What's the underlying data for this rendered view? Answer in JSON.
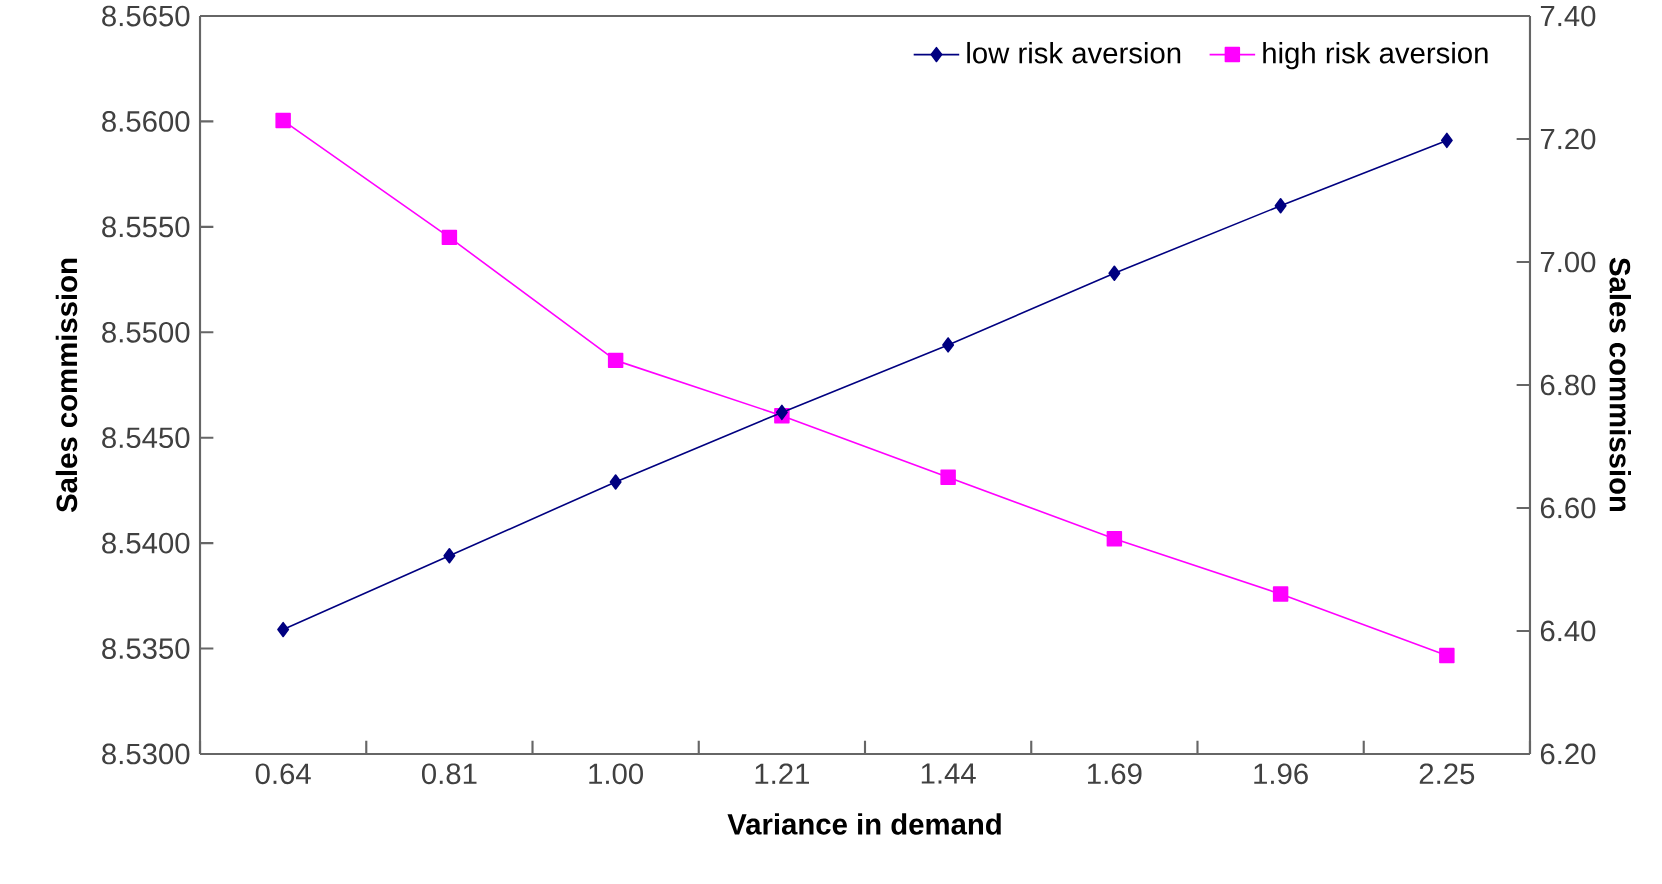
{
  "chart_data": {
    "type": "line",
    "xlabel": "Variance in demand",
    "ylabel": "Sales commission",
    "y2label": "Sales commission",
    "categories": [
      "0.64",
      "0.81",
      "1.00",
      "1.21",
      "1.44",
      "1.69",
      "1.96",
      "2.25"
    ],
    "series": [
      {
        "name": "low risk aversion",
        "color": "#000080",
        "marker": "diamond",
        "values": [
          8.5359,
          8.5394,
          8.5429,
          8.5462,
          8.5494,
          8.5528,
          8.556,
          8.5591
        ]
      },
      {
        "name": "high risk aversion",
        "color": "#ff00ff",
        "marker": "square",
        "axis": "y2",
        "values": [
          7.23,
          7.04,
          6.84,
          6.75,
          6.65,
          6.55,
          6.46,
          6.36
        ]
      }
    ],
    "ylim": [
      8.53,
      8.565
    ],
    "yticks": [
      {
        "value": 8.53,
        "label": "8.5300"
      },
      {
        "value": 8.535,
        "label": "8.5350"
      },
      {
        "value": 8.54,
        "label": "8.5400"
      },
      {
        "value": 8.545,
        "label": "8.5450"
      },
      {
        "value": 8.55,
        "label": "8.5500"
      },
      {
        "value": 8.555,
        "label": "8.5550"
      },
      {
        "value": 8.56,
        "label": "8.5600"
      },
      {
        "value": 8.565,
        "label": "8.5650"
      }
    ],
    "y2lim": [
      6.2,
      7.4
    ],
    "y2ticks": [
      {
        "value": 6.2,
        "label": "6.20"
      },
      {
        "value": 6.4,
        "label": "6.40"
      },
      {
        "value": 6.6,
        "label": "6.60"
      },
      {
        "value": 6.8,
        "label": "6.80"
      },
      {
        "value": 7.0,
        "label": "7.00"
      },
      {
        "value": 7.2,
        "label": "7.20"
      },
      {
        "value": 7.4,
        "label": "7.40"
      }
    ],
    "legend": "top right",
    "grid": false
  }
}
